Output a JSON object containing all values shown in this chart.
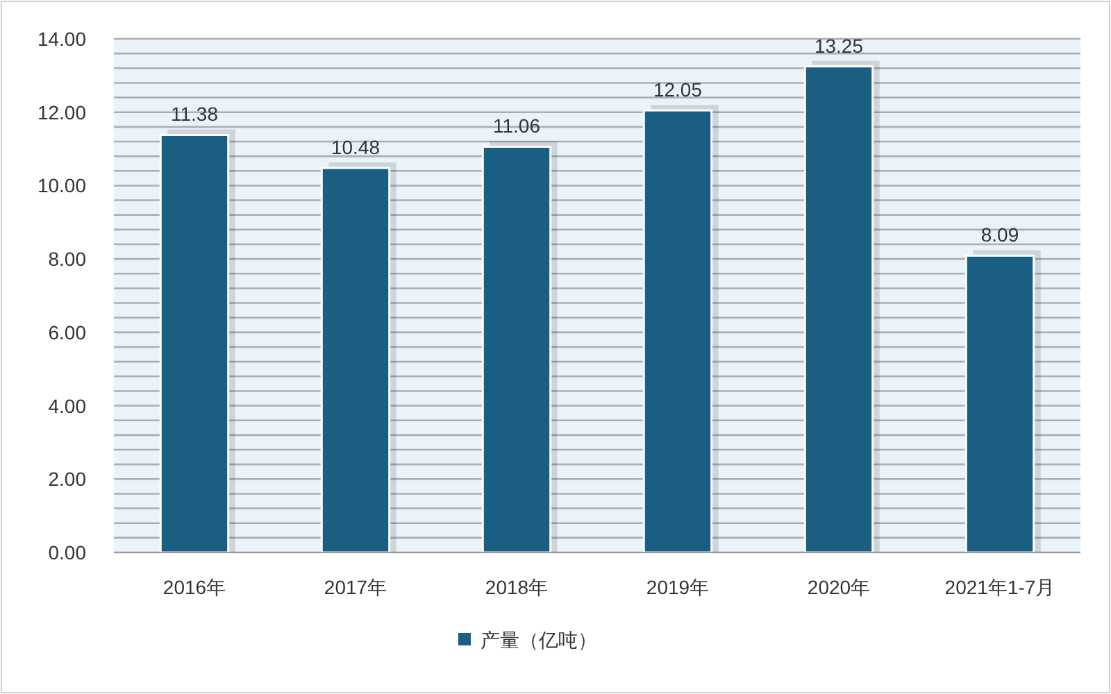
{
  "chart_data": {
    "type": "bar",
    "categories": [
      "2016年",
      "2017年",
      "2018年",
      "2019年",
      "2020年",
      "2021年1-7月"
    ],
    "series": [
      {
        "name": "产量（亿吨）",
        "color": "#1a5e82",
        "values": [
          11.38,
          10.48,
          11.06,
          12.05,
          13.25,
          8.09
        ]
      }
    ],
    "data_labels": true,
    "legend": "bottom",
    "grid": "y",
    "ylim": [
      0,
      14
    ],
    "yticks": [
      {
        "value": 0,
        "label": "0.00"
      },
      {
        "value": 0.4,
        "label": null
      },
      {
        "value": 0.8,
        "label": null
      },
      {
        "value": 1.2,
        "label": null
      },
      {
        "value": 1.6,
        "label": null
      },
      {
        "value": 2,
        "label": "2.00"
      },
      {
        "value": 2.4,
        "label": null
      },
      {
        "value": 2.8,
        "label": null
      },
      {
        "value": 3.2,
        "label": null
      },
      {
        "value": 3.6,
        "label": null
      },
      {
        "value": 4,
        "label": "4.00"
      },
      {
        "value": 4.4,
        "label": null
      },
      {
        "value": 4.8,
        "label": null
      },
      {
        "value": 5.2,
        "label": null
      },
      {
        "value": 5.6,
        "label": null
      },
      {
        "value": 6,
        "label": "6.00"
      },
      {
        "value": 6.4,
        "label": null
      },
      {
        "value": 6.8,
        "label": null
      },
      {
        "value": 7.2,
        "label": null
      },
      {
        "value": 7.6,
        "label": null
      },
      {
        "value": 8,
        "label": "8.00"
      },
      {
        "value": 8.4,
        "label": null
      },
      {
        "value": 8.8,
        "label": null
      },
      {
        "value": 9.2,
        "label": null
      },
      {
        "value": 9.6,
        "label": null
      },
      {
        "value": 10,
        "label": "10.00"
      },
      {
        "value": 10.4,
        "label": null
      },
      {
        "value": 10.8,
        "label": null
      },
      {
        "value": 11.2,
        "label": null
      },
      {
        "value": 11.6,
        "label": null
      },
      {
        "value": 12,
        "label": "12.00"
      },
      {
        "value": 12.4,
        "label": null
      },
      {
        "value": 12.8,
        "label": null
      },
      {
        "value": 13.2,
        "label": null
      },
      {
        "value": 13.6,
        "label": null
      },
      {
        "value": 14,
        "label": "14.00"
      }
    ]
  }
}
